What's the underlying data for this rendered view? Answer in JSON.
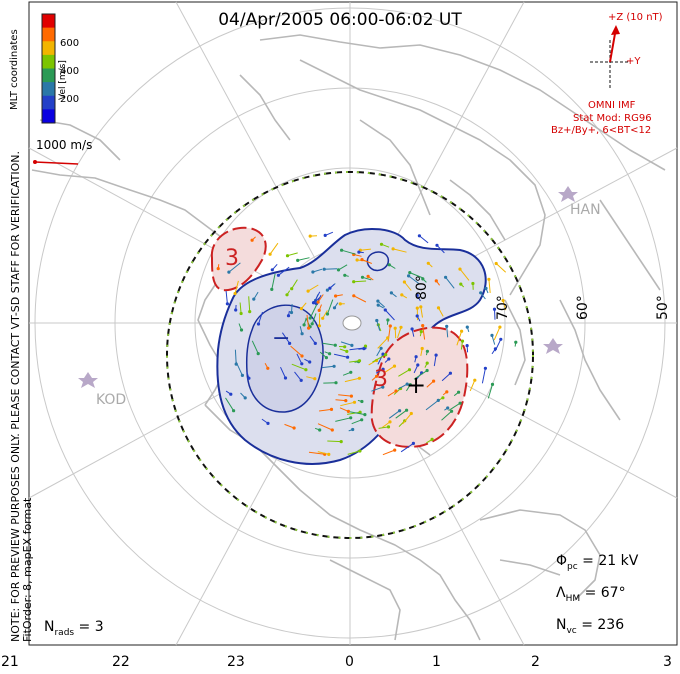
{
  "title": "04/Apr/2005 06:00-06:02 UT",
  "side_note_line1": "NOTE: FOR PREVIEW PURPOSES ONLY. PLEASE CONTACT VT-SD STAFF FOR VERIFICATION.",
  "side_note_line2": "FitOrder: 8, mapEX format",
  "coord_label": "MLT coordinates",
  "colorbar": {
    "label": "Vel [m/s]",
    "ticks": [
      "600",
      "400",
      "200"
    ],
    "colors": [
      "#e00000",
      "#ff6a00",
      "#f2b500",
      "#7cc400",
      "#2a9a55",
      "#2a78a8",
      "#2340c8",
      "#0a00e0"
    ]
  },
  "vector_scale_label": "1000 m/s",
  "imf": {
    "z_label": "+Z (10 nT)",
    "y_label": "+Y",
    "omni_label": "OMNI IMF",
    "stat_mod": "Stat Mod: RG96",
    "condition": "Bz+/By+, 6<BT<12"
  },
  "stats": {
    "phi_sym": "Φ",
    "phi_sub": "pc",
    "phi_val": " = 21 kV",
    "lambda_sym": "Λ",
    "lambda_sub": "HM",
    "lambda_val": " = 67°",
    "nvc_sym": "N",
    "nvc_sub": "vc",
    "nvc_val": " = 236",
    "nrads_sym": "N",
    "nrads_sub": "rads",
    "nrads_val": " = 3"
  },
  "mlt_axis": [
    "21",
    "22",
    "23",
    "0",
    "1",
    "2",
    "3"
  ],
  "latitudes": [
    "80°",
    "70°",
    "60°",
    "50°"
  ],
  "radars": [
    "HAN",
    "KOD"
  ],
  "contour_labels": {
    "plus": "+",
    "minus": "−",
    "red_three_a": "3",
    "red_three_b": "3"
  }
}
